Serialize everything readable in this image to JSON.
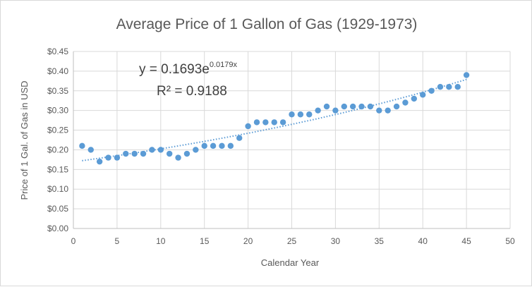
{
  "chart_data": {
    "type": "scatter",
    "title": "Average Price of 1 Gallon of Gas (1929-1973)",
    "xlabel": "Calendar Year",
    "ylabel": "Price of 1 Gal. of Gas in USD",
    "xlim": [
      0,
      50
    ],
    "ylim": [
      0,
      0.45
    ],
    "x_ticks": [
      "0",
      "5",
      "10",
      "15",
      "20",
      "25",
      "30",
      "35",
      "40",
      "45",
      "50"
    ],
    "y_ticks": [
      "$0.00",
      "$0.05",
      "$0.10",
      "$0.15",
      "$0.20",
      "$0.25",
      "$0.30",
      "$0.35",
      "$0.40",
      "$0.45"
    ],
    "grid": true,
    "legend": "none",
    "series": [
      {
        "x": [
          1,
          2,
          3,
          4,
          5,
          6,
          7,
          8,
          9,
          10,
          11,
          12,
          13,
          14,
          15,
          16,
          17,
          18,
          19,
          20,
          21,
          22,
          23,
          24,
          25,
          26,
          27,
          28,
          29,
          30,
          31,
          32,
          33,
          34,
          35,
          36,
          37,
          38,
          39,
          40,
          41,
          42,
          43,
          44,
          45
        ],
        "values": [
          0.21,
          0.2,
          0.17,
          0.18,
          0.18,
          0.19,
          0.19,
          0.19,
          0.2,
          0.2,
          0.19,
          0.18,
          0.19,
          0.2,
          0.21,
          0.21,
          0.21,
          0.21,
          0.23,
          0.26,
          0.27,
          0.27,
          0.27,
          0.27,
          0.29,
          0.29,
          0.29,
          0.3,
          0.31,
          0.3,
          0.31,
          0.31,
          0.31,
          0.31,
          0.3,
          0.3,
          0.31,
          0.32,
          0.33,
          0.34,
          0.35,
          0.36,
          0.36,
          0.36,
          0.39
        ]
      }
    ],
    "trendline": {
      "type": "exponential",
      "a": 0.1693,
      "b": 0.0179,
      "x_range": [
        1,
        45
      ],
      "equation_main": "y = 0.1693e",
      "equation_exp": "0.0179x",
      "r_squared": "R² = 0.9188"
    },
    "colors": {
      "marker": "#5b9bd5",
      "trend": "#5b9bd5",
      "grid": "#d9d9d9",
      "axis": "#bfbfbf"
    }
  }
}
